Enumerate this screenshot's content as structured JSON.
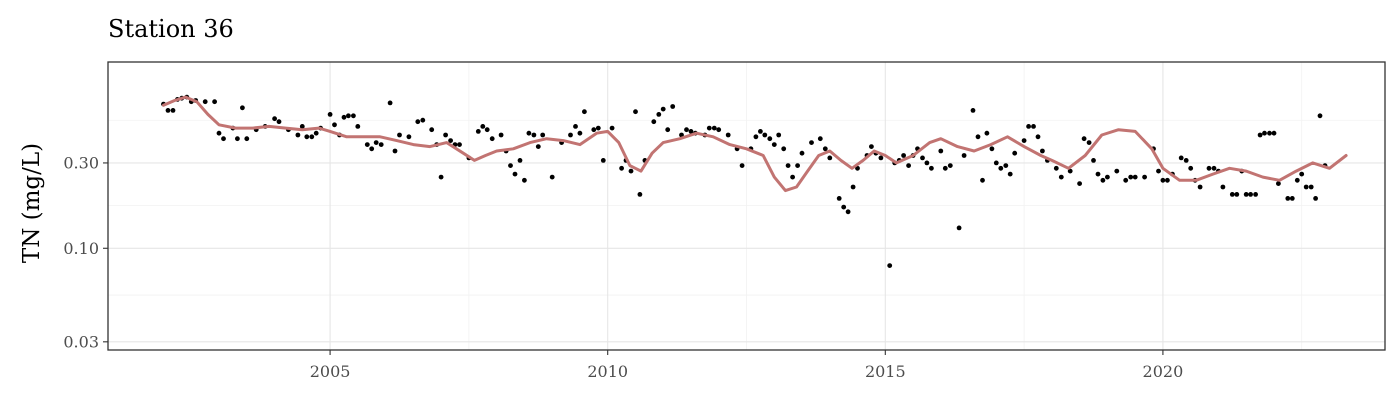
{
  "chart_data": {
    "type": "scatter",
    "title": "Station 36",
    "xlabel": "",
    "ylabel": "TN (mg/L)",
    "y_scale": "log10",
    "xlim": [
      2001.0,
      2024.0
    ],
    "ylim": [
      0.027,
      1.1
    ],
    "x_ticks": [
      {
        "value": 2005,
        "label": "2005"
      },
      {
        "value": 2010,
        "label": "2010"
      },
      {
        "value": 2015,
        "label": "2015"
      },
      {
        "value": 2020,
        "label": "2020"
      }
    ],
    "y_ticks": [
      {
        "value": 0.03,
        "label": "0.03"
      },
      {
        "value": 0.1,
        "label": "0.10"
      },
      {
        "value": 0.3,
        "label": "0.30"
      }
    ],
    "grid": true,
    "legend": "none",
    "colors": {
      "points": "#000000",
      "trend": "#c27472"
    },
    "points": [
      [
        2002.0,
        0.64
      ],
      [
        2002.08,
        0.59
      ],
      [
        2002.17,
        0.59
      ],
      [
        2002.25,
        0.68
      ],
      [
        2002.33,
        0.69
      ],
      [
        2002.42,
        0.7
      ],
      [
        2002.5,
        0.66
      ],
      [
        2002.58,
        0.67
      ],
      [
        2002.75,
        0.66
      ],
      [
        2002.92,
        0.66
      ],
      [
        2003.0,
        0.44
      ],
      [
        2003.08,
        0.41
      ],
      [
        2003.25,
        0.47
      ],
      [
        2003.33,
        0.41
      ],
      [
        2003.42,
        0.61
      ],
      [
        2003.5,
        0.41
      ],
      [
        2003.67,
        0.46
      ],
      [
        2003.83,
        0.48
      ],
      [
        2004.0,
        0.53
      ],
      [
        2004.08,
        0.51
      ],
      [
        2004.25,
        0.46
      ],
      [
        2004.42,
        0.43
      ],
      [
        2004.58,
        0.42
      ],
      [
        2004.67,
        0.42
      ],
      [
        2004.75,
        0.44
      ],
      [
        2004.83,
        0.47
      ],
      [
        2005.0,
        0.56
      ],
      [
        2004.5,
        0.48
      ],
      [
        2005.08,
        0.49
      ],
      [
        2005.17,
        0.43
      ],
      [
        2005.25,
        0.54
      ],
      [
        2005.33,
        0.55
      ],
      [
        2005.42,
        0.55
      ],
      [
        2005.5,
        0.48
      ],
      [
        2005.67,
        0.38
      ],
      [
        2005.75,
        0.36
      ],
      [
        2005.83,
        0.39
      ],
      [
        2005.92,
        0.38
      ],
      [
        2006.08,
        0.65
      ],
      [
        2006.17,
        0.35
      ],
      [
        2006.25,
        0.43
      ],
      [
        2006.42,
        0.42
      ],
      [
        2006.58,
        0.51
      ],
      [
        2006.67,
        0.52
      ],
      [
        2006.83,
        0.46
      ],
      [
        2006.92,
        0.38
      ],
      [
        2007.0,
        0.25
      ],
      [
        2007.08,
        0.43
      ],
      [
        2007.17,
        0.4
      ],
      [
        2007.25,
        0.38
      ],
      [
        2007.33,
        0.38
      ],
      [
        2007.5,
        0.32
      ],
      [
        2007.67,
        0.45
      ],
      [
        2007.75,
        0.48
      ],
      [
        2007.83,
        0.46
      ],
      [
        2007.92,
        0.41
      ],
      [
        2008.08,
        0.43
      ],
      [
        2008.17,
        0.35
      ],
      [
        2008.25,
        0.29
      ],
      [
        2008.33,
        0.26
      ],
      [
        2008.42,
        0.31
      ],
      [
        2008.5,
        0.24
      ],
      [
        2008.58,
        0.44
      ],
      [
        2008.67,
        0.43
      ],
      [
        2008.75,
        0.37
      ],
      [
        2008.83,
        0.43
      ],
      [
        2009.0,
        0.25
      ],
      [
        2009.17,
        0.39
      ],
      [
        2009.33,
        0.43
      ],
      [
        2009.42,
        0.48
      ],
      [
        2009.5,
        0.44
      ],
      [
        2009.58,
        0.58
      ],
      [
        2009.75,
        0.46
      ],
      [
        2009.83,
        0.47
      ],
      [
        2009.92,
        0.31
      ],
      [
        2010.08,
        0.47
      ],
      [
        2010.25,
        0.28
      ],
      [
        2010.33,
        0.31
      ],
      [
        2010.42,
        0.27
      ],
      [
        2010.5,
        0.58
      ],
      [
        2010.58,
        0.2
      ],
      [
        2010.67,
        0.31
      ],
      [
        2010.83,
        0.51
      ],
      [
        2010.92,
        0.56
      ],
      [
        2011.0,
        0.6
      ],
      [
        2011.08,
        0.46
      ],
      [
        2011.17,
        0.62
      ],
      [
        2011.33,
        0.43
      ],
      [
        2011.42,
        0.46
      ],
      [
        2011.5,
        0.45
      ],
      [
        2011.58,
        0.44
      ],
      [
        2011.75,
        0.43
      ],
      [
        2011.83,
        0.47
      ],
      [
        2011.92,
        0.47
      ],
      [
        2012.0,
        0.46
      ],
      [
        2012.17,
        0.43
      ],
      [
        2012.33,
        0.36
      ],
      [
        2012.42,
        0.29
      ],
      [
        2012.58,
        0.36
      ],
      [
        2012.67,
        0.42
      ],
      [
        2012.75,
        0.45
      ],
      [
        2012.83,
        0.43
      ],
      [
        2012.92,
        0.41
      ],
      [
        2013.0,
        0.38
      ],
      [
        2013.08,
        0.43
      ],
      [
        2013.17,
        0.36
      ],
      [
        2013.25,
        0.29
      ],
      [
        2013.33,
        0.25
      ],
      [
        2013.42,
        0.29
      ],
      [
        2013.5,
        0.34
      ],
      [
        2013.67,
        0.39
      ],
      [
        2013.83,
        0.41
      ],
      [
        2013.92,
        0.36
      ],
      [
        2014.0,
        0.32
      ],
      [
        2014.17,
        0.19
      ],
      [
        2014.25,
        0.17
      ],
      [
        2014.33,
        0.16
      ],
      [
        2014.42,
        0.22
      ],
      [
        2014.5,
        0.28
      ],
      [
        2014.67,
        0.33
      ],
      [
        2014.75,
        0.37
      ],
      [
        2014.83,
        0.34
      ],
      [
        2014.92,
        0.32
      ],
      [
        2015.08,
        0.08
      ],
      [
        2015.17,
        0.3
      ],
      [
        2015.25,
        0.31
      ],
      [
        2015.33,
        0.33
      ],
      [
        2015.42,
        0.29
      ],
      [
        2015.5,
        0.33
      ],
      [
        2015.58,
        0.36
      ],
      [
        2015.67,
        0.32
      ],
      [
        2015.75,
        0.3
      ],
      [
        2015.83,
        0.28
      ],
      [
        2016.0,
        0.35
      ],
      [
        2016.08,
        0.28
      ],
      [
        2016.17,
        0.29
      ],
      [
        2016.33,
        0.13
      ],
      [
        2016.42,
        0.33
      ],
      [
        2016.58,
        0.59
      ],
      [
        2016.67,
        0.42
      ],
      [
        2016.75,
        0.24
      ],
      [
        2016.83,
        0.44
      ],
      [
        2016.92,
        0.36
      ],
      [
        2017.0,
        0.3
      ],
      [
        2017.08,
        0.28
      ],
      [
        2017.17,
        0.29
      ],
      [
        2017.25,
        0.26
      ],
      [
        2017.33,
        0.34
      ],
      [
        2017.5,
        0.4
      ],
      [
        2017.58,
        0.48
      ],
      [
        2017.67,
        0.48
      ],
      [
        2017.75,
        0.42
      ],
      [
        2017.83,
        0.35
      ],
      [
        2017.92,
        0.31
      ],
      [
        2018.08,
        0.28
      ],
      [
        2018.17,
        0.25
      ],
      [
        2018.33,
        0.27
      ],
      [
        2018.5,
        0.23
      ],
      [
        2018.58,
        0.41
      ],
      [
        2018.67,
        0.39
      ],
      [
        2018.75,
        0.31
      ],
      [
        2018.83,
        0.26
      ],
      [
        2018.92,
        0.24
      ],
      [
        2019.0,
        0.25
      ],
      [
        2019.17,
        0.27
      ],
      [
        2019.33,
        0.24
      ],
      [
        2019.42,
        0.25
      ],
      [
        2019.5,
        0.25
      ],
      [
        2019.67,
        0.25
      ],
      [
        2019.83,
        0.36
      ],
      [
        2019.92,
        0.27
      ],
      [
        2020.0,
        0.24
      ],
      [
        2020.08,
        0.24
      ],
      [
        2020.17,
        0.26
      ],
      [
        2020.33,
        0.32
      ],
      [
        2020.42,
        0.31
      ],
      [
        2020.5,
        0.28
      ],
      [
        2020.58,
        0.24
      ],
      [
        2020.67,
        0.22
      ],
      [
        2020.83,
        0.28
      ],
      [
        2020.92,
        0.28
      ],
      [
        2021.0,
        0.27
      ],
      [
        2021.08,
        0.22
      ],
      [
        2021.25,
        0.2
      ],
      [
        2021.33,
        0.2
      ],
      [
        2021.42,
        0.27
      ],
      [
        2021.5,
        0.2
      ],
      [
        2021.58,
        0.2
      ],
      [
        2021.67,
        0.2
      ],
      [
        2021.75,
        0.43
      ],
      [
        2021.83,
        0.44
      ],
      [
        2021.92,
        0.44
      ],
      [
        2022.0,
        0.44
      ],
      [
        2022.08,
        0.23
      ],
      [
        2022.25,
        0.19
      ],
      [
        2022.33,
        0.19
      ],
      [
        2022.42,
        0.24
      ],
      [
        2022.5,
        0.26
      ],
      [
        2022.58,
        0.22
      ],
      [
        2022.67,
        0.22
      ],
      [
        2022.75,
        0.19
      ],
      [
        2022.83,
        0.55
      ],
      [
        2022.92,
        0.29
      ]
    ],
    "trend": [
      [
        2002.0,
        0.63
      ],
      [
        2002.2,
        0.67
      ],
      [
        2002.4,
        0.7
      ],
      [
        2002.6,
        0.66
      ],
      [
        2002.8,
        0.56
      ],
      [
        2003.0,
        0.49
      ],
      [
        2003.3,
        0.47
      ],
      [
        2003.6,
        0.47
      ],
      [
        2003.9,
        0.48
      ],
      [
        2004.2,
        0.47
      ],
      [
        2004.5,
        0.46
      ],
      [
        2004.8,
        0.47
      ],
      [
        2005.0,
        0.45
      ],
      [
        2005.3,
        0.42
      ],
      [
        2005.6,
        0.42
      ],
      [
        2005.9,
        0.42
      ],
      [
        2006.2,
        0.4
      ],
      [
        2006.5,
        0.38
      ],
      [
        2006.8,
        0.37
      ],
      [
        2007.1,
        0.39
      ],
      [
        2007.4,
        0.34
      ],
      [
        2007.6,
        0.31
      ],
      [
        2007.8,
        0.33
      ],
      [
        2008.0,
        0.35
      ],
      [
        2008.3,
        0.36
      ],
      [
        2008.6,
        0.39
      ],
      [
        2008.9,
        0.41
      ],
      [
        2009.2,
        0.4
      ],
      [
        2009.5,
        0.38
      ],
      [
        2009.8,
        0.44
      ],
      [
        2010.0,
        0.45
      ],
      [
        2010.2,
        0.39
      ],
      [
        2010.4,
        0.29
      ],
      [
        2010.6,
        0.27
      ],
      [
        2010.8,
        0.34
      ],
      [
        2011.0,
        0.39
      ],
      [
        2011.3,
        0.41
      ],
      [
        2011.6,
        0.44
      ],
      [
        2011.9,
        0.42
      ],
      [
        2012.2,
        0.38
      ],
      [
        2012.5,
        0.36
      ],
      [
        2012.8,
        0.33
      ],
      [
        2013.0,
        0.25
      ],
      [
        2013.2,
        0.21
      ],
      [
        2013.4,
        0.22
      ],
      [
        2013.6,
        0.27
      ],
      [
        2013.8,
        0.33
      ],
      [
        2014.0,
        0.35
      ],
      [
        2014.2,
        0.31
      ],
      [
        2014.4,
        0.28
      ],
      [
        2014.6,
        0.31
      ],
      [
        2014.8,
        0.35
      ],
      [
        2015.0,
        0.33
      ],
      [
        2015.2,
        0.3
      ],
      [
        2015.5,
        0.33
      ],
      [
        2015.8,
        0.39
      ],
      [
        2016.0,
        0.41
      ],
      [
        2016.3,
        0.37
      ],
      [
        2016.6,
        0.35
      ],
      [
        2016.9,
        0.38
      ],
      [
        2017.2,
        0.42
      ],
      [
        2017.5,
        0.37
      ],
      [
        2017.8,
        0.33
      ],
      [
        2018.0,
        0.31
      ],
      [
        2018.3,
        0.28
      ],
      [
        2018.6,
        0.33
      ],
      [
        2018.9,
        0.43
      ],
      [
        2019.2,
        0.46
      ],
      [
        2019.5,
        0.45
      ],
      [
        2019.8,
        0.36
      ],
      [
        2020.0,
        0.28
      ],
      [
        2020.3,
        0.24
      ],
      [
        2020.6,
        0.24
      ],
      [
        2020.9,
        0.26
      ],
      [
        2021.2,
        0.28
      ],
      [
        2021.5,
        0.27
      ],
      [
        2021.8,
        0.25
      ],
      [
        2022.1,
        0.24
      ],
      [
        2022.4,
        0.27
      ],
      [
        2022.7,
        0.3
      ],
      [
        2023.0,
        0.28
      ],
      [
        2023.3,
        0.33
      ]
    ]
  }
}
